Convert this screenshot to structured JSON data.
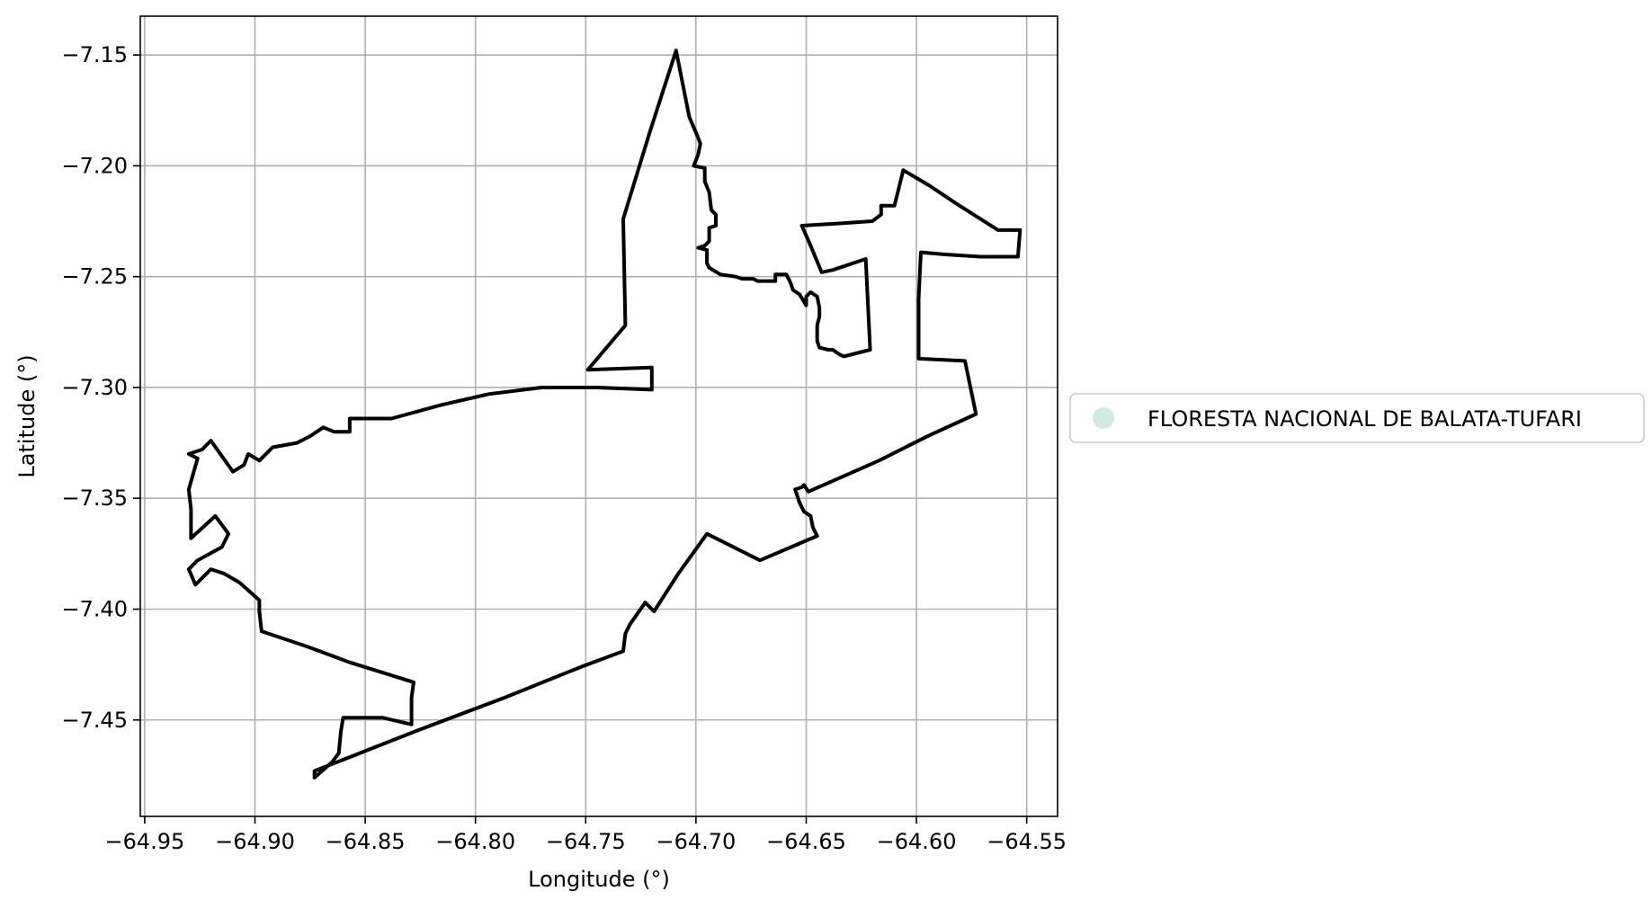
{
  "chart_data": {
    "type": "map",
    "xlabel": "Longitude (°)",
    "ylabel": "Latitude (°)",
    "xlim": [
      -64.952,
      -64.536
    ],
    "ylim": [
      -7.4935,
      -7.1325
    ],
    "xticks": [
      -64.95,
      -64.9,
      -64.85,
      -64.8,
      -64.75,
      -64.7,
      -64.65,
      -64.6,
      -64.55
    ],
    "xtick_labels": [
      "−64.95",
      "−64.90",
      "−64.85",
      "−64.80",
      "−64.75",
      "−64.70",
      "−64.65",
      "−64.60",
      "−64.55"
    ],
    "yticks": [
      -7.15,
      -7.2,
      -7.25,
      -7.3,
      -7.35,
      -7.4,
      -7.45
    ],
    "ytick_labels": [
      "−7.15",
      "−7.20",
      "−7.25",
      "−7.30",
      "−7.35",
      "−7.40",
      "−7.45"
    ],
    "grid": true,
    "legend": {
      "placement": "right",
      "entries": [
        {
          "label": "FLORESTA NACIONAL DE BALATA-TUFARI",
          "color": "#cfeadf"
        }
      ]
    },
    "series": [
      {
        "name": "FLORESTA NACIONAL DE BALATA-TUFARI",
        "fill": "#cfeadf",
        "stroke": "#000000",
        "polygon": [
          [
            -64.709,
            -7.148
          ],
          [
            -64.703,
            -7.178
          ],
          [
            -64.7,
            -7.185
          ],
          [
            -64.698,
            -7.19
          ],
          [
            -64.699,
            -7.195
          ],
          [
            -64.701,
            -7.2
          ],
          [
            -64.696,
            -7.201
          ],
          [
            -64.696,
            -7.207
          ],
          [
            -64.694,
            -7.212
          ],
          [
            -64.693,
            -7.22
          ],
          [
            -64.691,
            -7.222
          ],
          [
            -64.691,
            -7.227
          ],
          [
            -64.694,
            -7.228
          ],
          [
            -64.694,
            -7.234
          ],
          [
            -64.696,
            -7.236
          ],
          [
            -64.699,
            -7.237
          ],
          [
            -64.695,
            -7.238
          ],
          [
            -64.695,
            -7.244
          ],
          [
            -64.694,
            -7.246
          ],
          [
            -64.689,
            -7.249
          ],
          [
            -64.682,
            -7.25
          ],
          [
            -64.679,
            -7.251
          ],
          [
            -64.674,
            -7.251
          ],
          [
            -64.672,
            -7.252
          ],
          [
            -64.664,
            -7.252
          ],
          [
            -64.664,
            -7.249
          ],
          [
            -64.659,
            -7.249
          ],
          [
            -64.657,
            -7.253
          ],
          [
            -64.656,
            -7.256
          ],
          [
            -64.653,
            -7.258
          ],
          [
            -64.65,
            -7.263
          ],
          [
            -64.65,
            -7.259
          ],
          [
            -64.648,
            -7.257
          ],
          [
            -64.645,
            -7.259
          ],
          [
            -64.644,
            -7.264
          ],
          [
            -64.644,
            -7.268
          ],
          [
            -64.645,
            -7.272
          ],
          [
            -64.645,
            -7.279
          ],
          [
            -64.644,
            -7.282
          ],
          [
            -64.64,
            -7.283
          ],
          [
            -64.638,
            -7.283
          ],
          [
            -64.635,
            -7.285
          ],
          [
            -64.633,
            -7.286
          ],
          [
            -64.621,
            -7.283
          ],
          [
            -64.623,
            -7.242
          ],
          [
            -64.638,
            -7.247
          ],
          [
            -64.643,
            -7.248
          ],
          [
            -64.648,
            -7.236
          ],
          [
            -64.652,
            -7.227
          ],
          [
            -64.635,
            -7.226
          ],
          [
            -64.62,
            -7.225
          ],
          [
            -64.616,
            -7.222
          ],
          [
            -64.616,
            -7.218
          ],
          [
            -64.61,
            -7.218
          ],
          [
            -64.606,
            -7.202
          ],
          [
            -64.594,
            -7.209
          ],
          [
            -64.582,
            -7.217
          ],
          [
            -64.563,
            -7.229
          ],
          [
            -64.553,
            -7.229
          ],
          [
            -64.554,
            -7.241
          ],
          [
            -64.571,
            -7.241
          ],
          [
            -64.587,
            -7.24
          ],
          [
            -64.598,
            -7.239
          ],
          [
            -64.599,
            -7.26
          ],
          [
            -64.599,
            -7.287
          ],
          [
            -64.578,
            -7.288
          ],
          [
            -64.573,
            -7.312
          ],
          [
            -64.595,
            -7.322
          ],
          [
            -64.617,
            -7.333
          ],
          [
            -64.633,
            -7.34
          ],
          [
            -64.649,
            -7.347
          ],
          [
            -64.651,
            -7.344
          ],
          [
            -64.652,
            -7.345
          ],
          [
            -64.655,
            -7.346
          ],
          [
            -64.653,
            -7.352
          ],
          [
            -64.651,
            -7.356
          ],
          [
            -64.648,
            -7.358
          ],
          [
            -64.647,
            -7.363
          ],
          [
            -64.645,
            -7.367
          ],
          [
            -64.671,
            -7.378
          ],
          [
            -64.695,
            -7.366
          ],
          [
            -64.708,
            -7.384
          ],
          [
            -64.719,
            -7.401
          ],
          [
            -64.723,
            -7.397
          ],
          [
            -64.73,
            -7.407
          ],
          [
            -64.732,
            -7.411
          ],
          [
            -64.733,
            -7.419
          ],
          [
            -64.752,
            -7.426
          ],
          [
            -64.787,
            -7.44
          ],
          [
            -64.827,
            -7.455
          ],
          [
            -64.873,
            -7.473
          ],
          [
            -64.873,
            -7.476
          ],
          [
            -64.865,
            -7.469
          ],
          [
            -64.862,
            -7.465
          ],
          [
            -64.861,
            -7.455
          ],
          [
            -64.86,
            -7.449
          ],
          [
            -64.842,
            -7.449
          ],
          [
            -64.829,
            -7.452
          ],
          [
            -64.829,
            -7.44
          ],
          [
            -64.828,
            -7.433
          ],
          [
            -64.857,
            -7.424
          ],
          [
            -64.876,
            -7.417
          ],
          [
            -64.897,
            -7.41
          ],
          [
            -64.898,
            -7.401
          ],
          [
            -64.898,
            -7.396
          ],
          [
            -64.907,
            -7.388
          ],
          [
            -64.914,
            -7.384
          ],
          [
            -64.92,
            -7.382
          ],
          [
            -64.927,
            -7.389
          ],
          [
            -64.93,
            -7.382
          ],
          [
            -64.926,
            -7.378
          ],
          [
            -64.915,
            -7.372
          ],
          [
            -64.912,
            -7.366
          ],
          [
            -64.918,
            -7.358
          ],
          [
            -64.929,
            -7.368
          ],
          [
            -64.929,
            -7.355
          ],
          [
            -64.93,
            -7.346
          ],
          [
            -64.928,
            -7.339
          ],
          [
            -64.926,
            -7.332
          ],
          [
            -64.93,
            -7.33
          ],
          [
            -64.924,
            -7.328
          ],
          [
            -64.92,
            -7.324
          ],
          [
            -64.91,
            -7.338
          ],
          [
            -64.905,
            -7.335
          ],
          [
            -64.903,
            -7.33
          ],
          [
            -64.898,
            -7.333
          ],
          [
            -64.896,
            -7.331
          ],
          [
            -64.892,
            -7.327
          ],
          [
            -64.881,
            -7.325
          ],
          [
            -64.875,
            -7.322
          ],
          [
            -64.869,
            -7.318
          ],
          [
            -64.864,
            -7.32
          ],
          [
            -64.857,
            -7.32
          ],
          [
            -64.857,
            -7.314
          ],
          [
            -64.853,
            -7.314
          ],
          [
            -64.838,
            -7.314
          ],
          [
            -64.816,
            -7.308
          ],
          [
            -64.794,
            -7.303
          ],
          [
            -64.77,
            -7.3
          ],
          [
            -64.745,
            -7.3
          ],
          [
            -64.72,
            -7.301
          ],
          [
            -64.72,
            -7.291
          ],
          [
            -64.749,
            -7.292
          ],
          [
            -64.732,
            -7.272
          ],
          [
            -64.733,
            -7.224
          ],
          [
            -64.721,
            -7.185
          ],
          [
            -64.709,
            -7.148
          ]
        ]
      }
    ]
  }
}
